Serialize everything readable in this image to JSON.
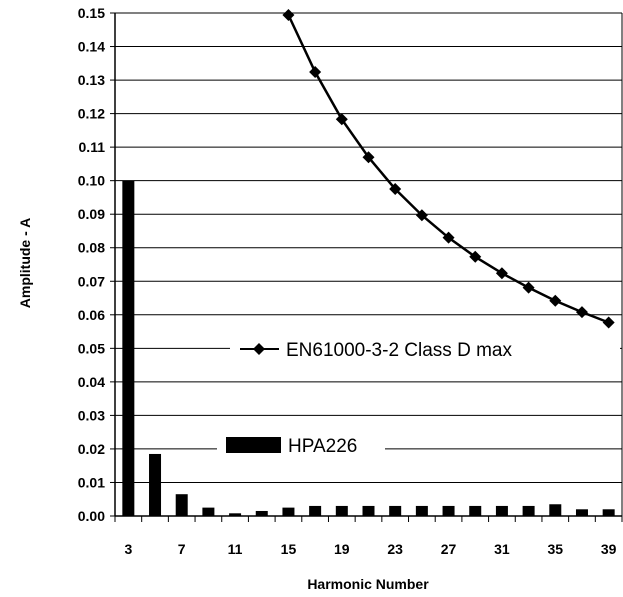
{
  "chart_data": {
    "type": "bar",
    "xlabel": "Harmonic Number",
    "ylabel": "Amplitude - A",
    "ylim": [
      0,
      0.15
    ],
    "yticks": [
      "0.00",
      "0.01",
      "0.02",
      "0.03",
      "0.04",
      "0.05",
      "0.06",
      "0.07",
      "0.08",
      "0.09",
      "0.10",
      "0.11",
      "0.12",
      "0.13",
      "0.14",
      "0.15"
    ],
    "categories": [
      3,
      5,
      7,
      9,
      11,
      13,
      15,
      17,
      19,
      21,
      23,
      25,
      27,
      29,
      31,
      33,
      35,
      37,
      39
    ],
    "xtick_labels": [
      "3",
      "7",
      "11",
      "15",
      "19",
      "23",
      "27",
      "31",
      "35",
      "39"
    ],
    "grid": true,
    "series": [
      {
        "name": "HPA226",
        "type": "bar",
        "color": "#000000",
        "x": [
          3,
          5,
          7,
          9,
          11,
          13,
          15,
          17,
          19,
          21,
          23,
          25,
          27,
          29,
          31,
          33,
          35,
          37,
          39
        ],
        "values": [
          0.1,
          0.0185,
          0.0065,
          0.0025,
          0.0008,
          0.0015,
          0.0025,
          0.003,
          0.003,
          0.003,
          0.003,
          0.003,
          0.003,
          0.003,
          0.003,
          0.003,
          0.0035,
          0.002,
          0.002
        ]
      },
      {
        "name": "EN61000-3-2 Class D max",
        "type": "line",
        "marker": "diamond",
        "color": "#000000",
        "x": [
          15,
          17,
          19,
          21,
          23,
          25,
          27,
          29,
          31,
          33,
          35,
          37,
          39
        ],
        "values": [
          0.1494,
          0.1324,
          0.1183,
          0.107,
          0.0975,
          0.0897,
          0.083,
          0.0773,
          0.0724,
          0.0681,
          0.0642,
          0.0608,
          0.0577
        ]
      }
    ]
  }
}
